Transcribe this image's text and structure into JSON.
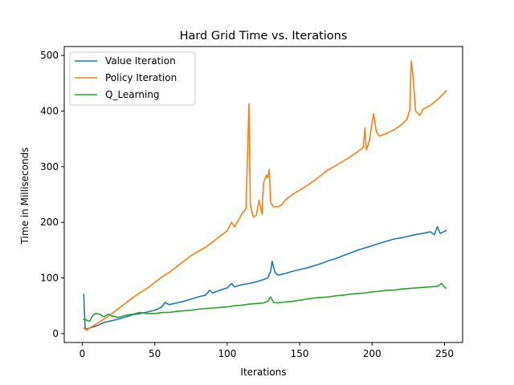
{
  "chart_data": {
    "type": "line",
    "title": "Hard Grid Time vs. Iterations",
    "xlabel": "Iterations",
    "ylabel": "Time in Milliseconds",
    "xlim": [
      -12.45,
      262.45
    ],
    "ylim": [
      -16,
      516
    ],
    "xticks": [
      0,
      50,
      100,
      150,
      200,
      250
    ],
    "yticks": [
      0,
      100,
      200,
      300,
      400,
      500
    ],
    "grid": false,
    "legend": "top-left",
    "series": [
      {
        "name": "Value Iteration",
        "color": "#1f77b4",
        "points": [
          [
            1,
            70
          ],
          [
            2,
            8
          ],
          [
            5,
            10
          ],
          [
            10,
            14
          ],
          [
            15,
            20
          ],
          [
            20,
            23
          ],
          [
            25,
            26
          ],
          [
            30,
            30
          ],
          [
            35,
            34
          ],
          [
            40,
            36
          ],
          [
            45,
            39
          ],
          [
            50,
            42
          ],
          [
            55,
            48
          ],
          [
            57,
            56
          ],
          [
            60,
            52
          ],
          [
            65,
            55
          ],
          [
            70,
            58
          ],
          [
            75,
            62
          ],
          [
            80,
            66
          ],
          [
            85,
            69
          ],
          [
            88,
            78
          ],
          [
            90,
            73
          ],
          [
            95,
            78
          ],
          [
            100,
            82
          ],
          [
            103,
            90
          ],
          [
            105,
            84
          ],
          [
            110,
            88
          ],
          [
            115,
            90
          ],
          [
            120,
            93
          ],
          [
            125,
            97
          ],
          [
            128,
            100
          ],
          [
            130,
            112
          ],
          [
            131,
            130
          ],
          [
            133,
            110
          ],
          [
            135,
            105
          ],
          [
            140,
            108
          ],
          [
            145,
            112
          ],
          [
            150,
            115
          ],
          [
            155,
            118
          ],
          [
            160,
            122
          ],
          [
            165,
            126
          ],
          [
            170,
            131
          ],
          [
            175,
            135
          ],
          [
            180,
            140
          ],
          [
            185,
            145
          ],
          [
            190,
            150
          ],
          [
            195,
            154
          ],
          [
            200,
            158
          ],
          [
            205,
            162
          ],
          [
            210,
            166
          ],
          [
            215,
            170
          ],
          [
            220,
            172
          ],
          [
            225,
            175
          ],
          [
            230,
            178
          ],
          [
            235,
            180
          ],
          [
            240,
            183
          ],
          [
            243,
            178
          ],
          [
            245,
            192
          ],
          [
            247,
            180
          ],
          [
            250,
            184
          ],
          [
            251,
            185
          ]
        ]
      },
      {
        "name": "Policy Iteration",
        "color": "#ff7f0e",
        "points": [
          [
            1,
            10
          ],
          [
            3,
            6
          ],
          [
            5,
            10
          ],
          [
            10,
            18
          ],
          [
            15,
            26
          ],
          [
            20,
            35
          ],
          [
            25,
            45
          ],
          [
            30,
            55
          ],
          [
            35,
            65
          ],
          [
            40,
            74
          ],
          [
            45,
            82
          ],
          [
            50,
            92
          ],
          [
            55,
            102
          ],
          [
            60,
            110
          ],
          [
            65,
            120
          ],
          [
            70,
            130
          ],
          [
            75,
            140
          ],
          [
            80,
            148
          ],
          [
            85,
            155
          ],
          [
            90,
            165
          ],
          [
            95,
            175
          ],
          [
            100,
            185
          ],
          [
            103,
            200
          ],
          [
            105,
            192
          ],
          [
            108,
            205
          ],
          [
            110,
            215
          ],
          [
            113,
            225
          ],
          [
            115,
            413
          ],
          [
            116,
            230
          ],
          [
            118,
            210
          ],
          [
            120,
            212
          ],
          [
            122,
            240
          ],
          [
            124,
            215
          ],
          [
            125,
            270
          ],
          [
            127,
            285
          ],
          [
            128,
            280
          ],
          [
            129,
            295
          ],
          [
            130,
            235
          ],
          [
            132,
            228
          ],
          [
            135,
            228
          ],
          [
            138,
            232
          ],
          [
            140,
            240
          ],
          [
            145,
            250
          ],
          [
            150,
            258
          ],
          [
            155,
            266
          ],
          [
            160,
            275
          ],
          [
            165,
            285
          ],
          [
            170,
            295
          ],
          [
            175,
            302
          ],
          [
            180,
            310
          ],
          [
            185,
            318
          ],
          [
            190,
            327
          ],
          [
            194,
            335
          ],
          [
            195,
            370
          ],
          [
            196,
            330
          ],
          [
            198,
            345
          ],
          [
            200,
            380
          ],
          [
            201,
            395
          ],
          [
            203,
            362
          ],
          [
            205,
            355
          ],
          [
            210,
            360
          ],
          [
            215,
            366
          ],
          [
            220,
            375
          ],
          [
            224,
            385
          ],
          [
            226,
            402
          ],
          [
            227,
            490
          ],
          [
            228,
            470
          ],
          [
            230,
            400
          ],
          [
            233,
            392
          ],
          [
            235,
            403
          ],
          [
            240,
            410
          ],
          [
            245,
            420
          ],
          [
            248,
            428
          ],
          [
            250,
            433
          ],
          [
            251,
            437
          ]
        ]
      },
      {
        "name": "Q_Learning",
        "color": "#2ca02c",
        "points": [
          [
            1,
            26
          ],
          [
            3,
            24
          ],
          [
            5,
            22
          ],
          [
            7,
            32
          ],
          [
            9,
            36
          ],
          [
            12,
            35
          ],
          [
            15,
            30
          ],
          [
            18,
            35
          ],
          [
            20,
            32
          ],
          [
            25,
            29
          ],
          [
            30,
            33
          ],
          [
            35,
            35
          ],
          [
            40,
            38
          ],
          [
            45,
            36
          ],
          [
            50,
            36
          ],
          [
            55,
            38
          ],
          [
            60,
            38
          ],
          [
            65,
            40
          ],
          [
            70,
            41
          ],
          [
            75,
            42
          ],
          [
            80,
            44
          ],
          [
            85,
            45
          ],
          [
            90,
            46
          ],
          [
            95,
            47
          ],
          [
            100,
            48
          ],
          [
            105,
            50
          ],
          [
            110,
            51
          ],
          [
            115,
            53
          ],
          [
            120,
            54
          ],
          [
            125,
            55
          ],
          [
            128,
            58
          ],
          [
            130,
            66
          ],
          [
            132,
            56
          ],
          [
            135,
            55
          ],
          [
            140,
            57
          ],
          [
            145,
            58
          ],
          [
            150,
            60
          ],
          [
            155,
            62
          ],
          [
            160,
            64
          ],
          [
            165,
            65
          ],
          [
            170,
            66
          ],
          [
            175,
            68
          ],
          [
            180,
            69
          ],
          [
            185,
            71
          ],
          [
            190,
            72
          ],
          [
            195,
            73
          ],
          [
            200,
            75
          ],
          [
            205,
            76
          ],
          [
            210,
            78
          ],
          [
            215,
            78
          ],
          [
            220,
            80
          ],
          [
            225,
            81
          ],
          [
            230,
            82
          ],
          [
            235,
            83
          ],
          [
            240,
            84
          ],
          [
            245,
            85
          ],
          [
            248,
            90
          ],
          [
            250,
            83
          ],
          [
            251,
            82
          ]
        ]
      }
    ]
  }
}
